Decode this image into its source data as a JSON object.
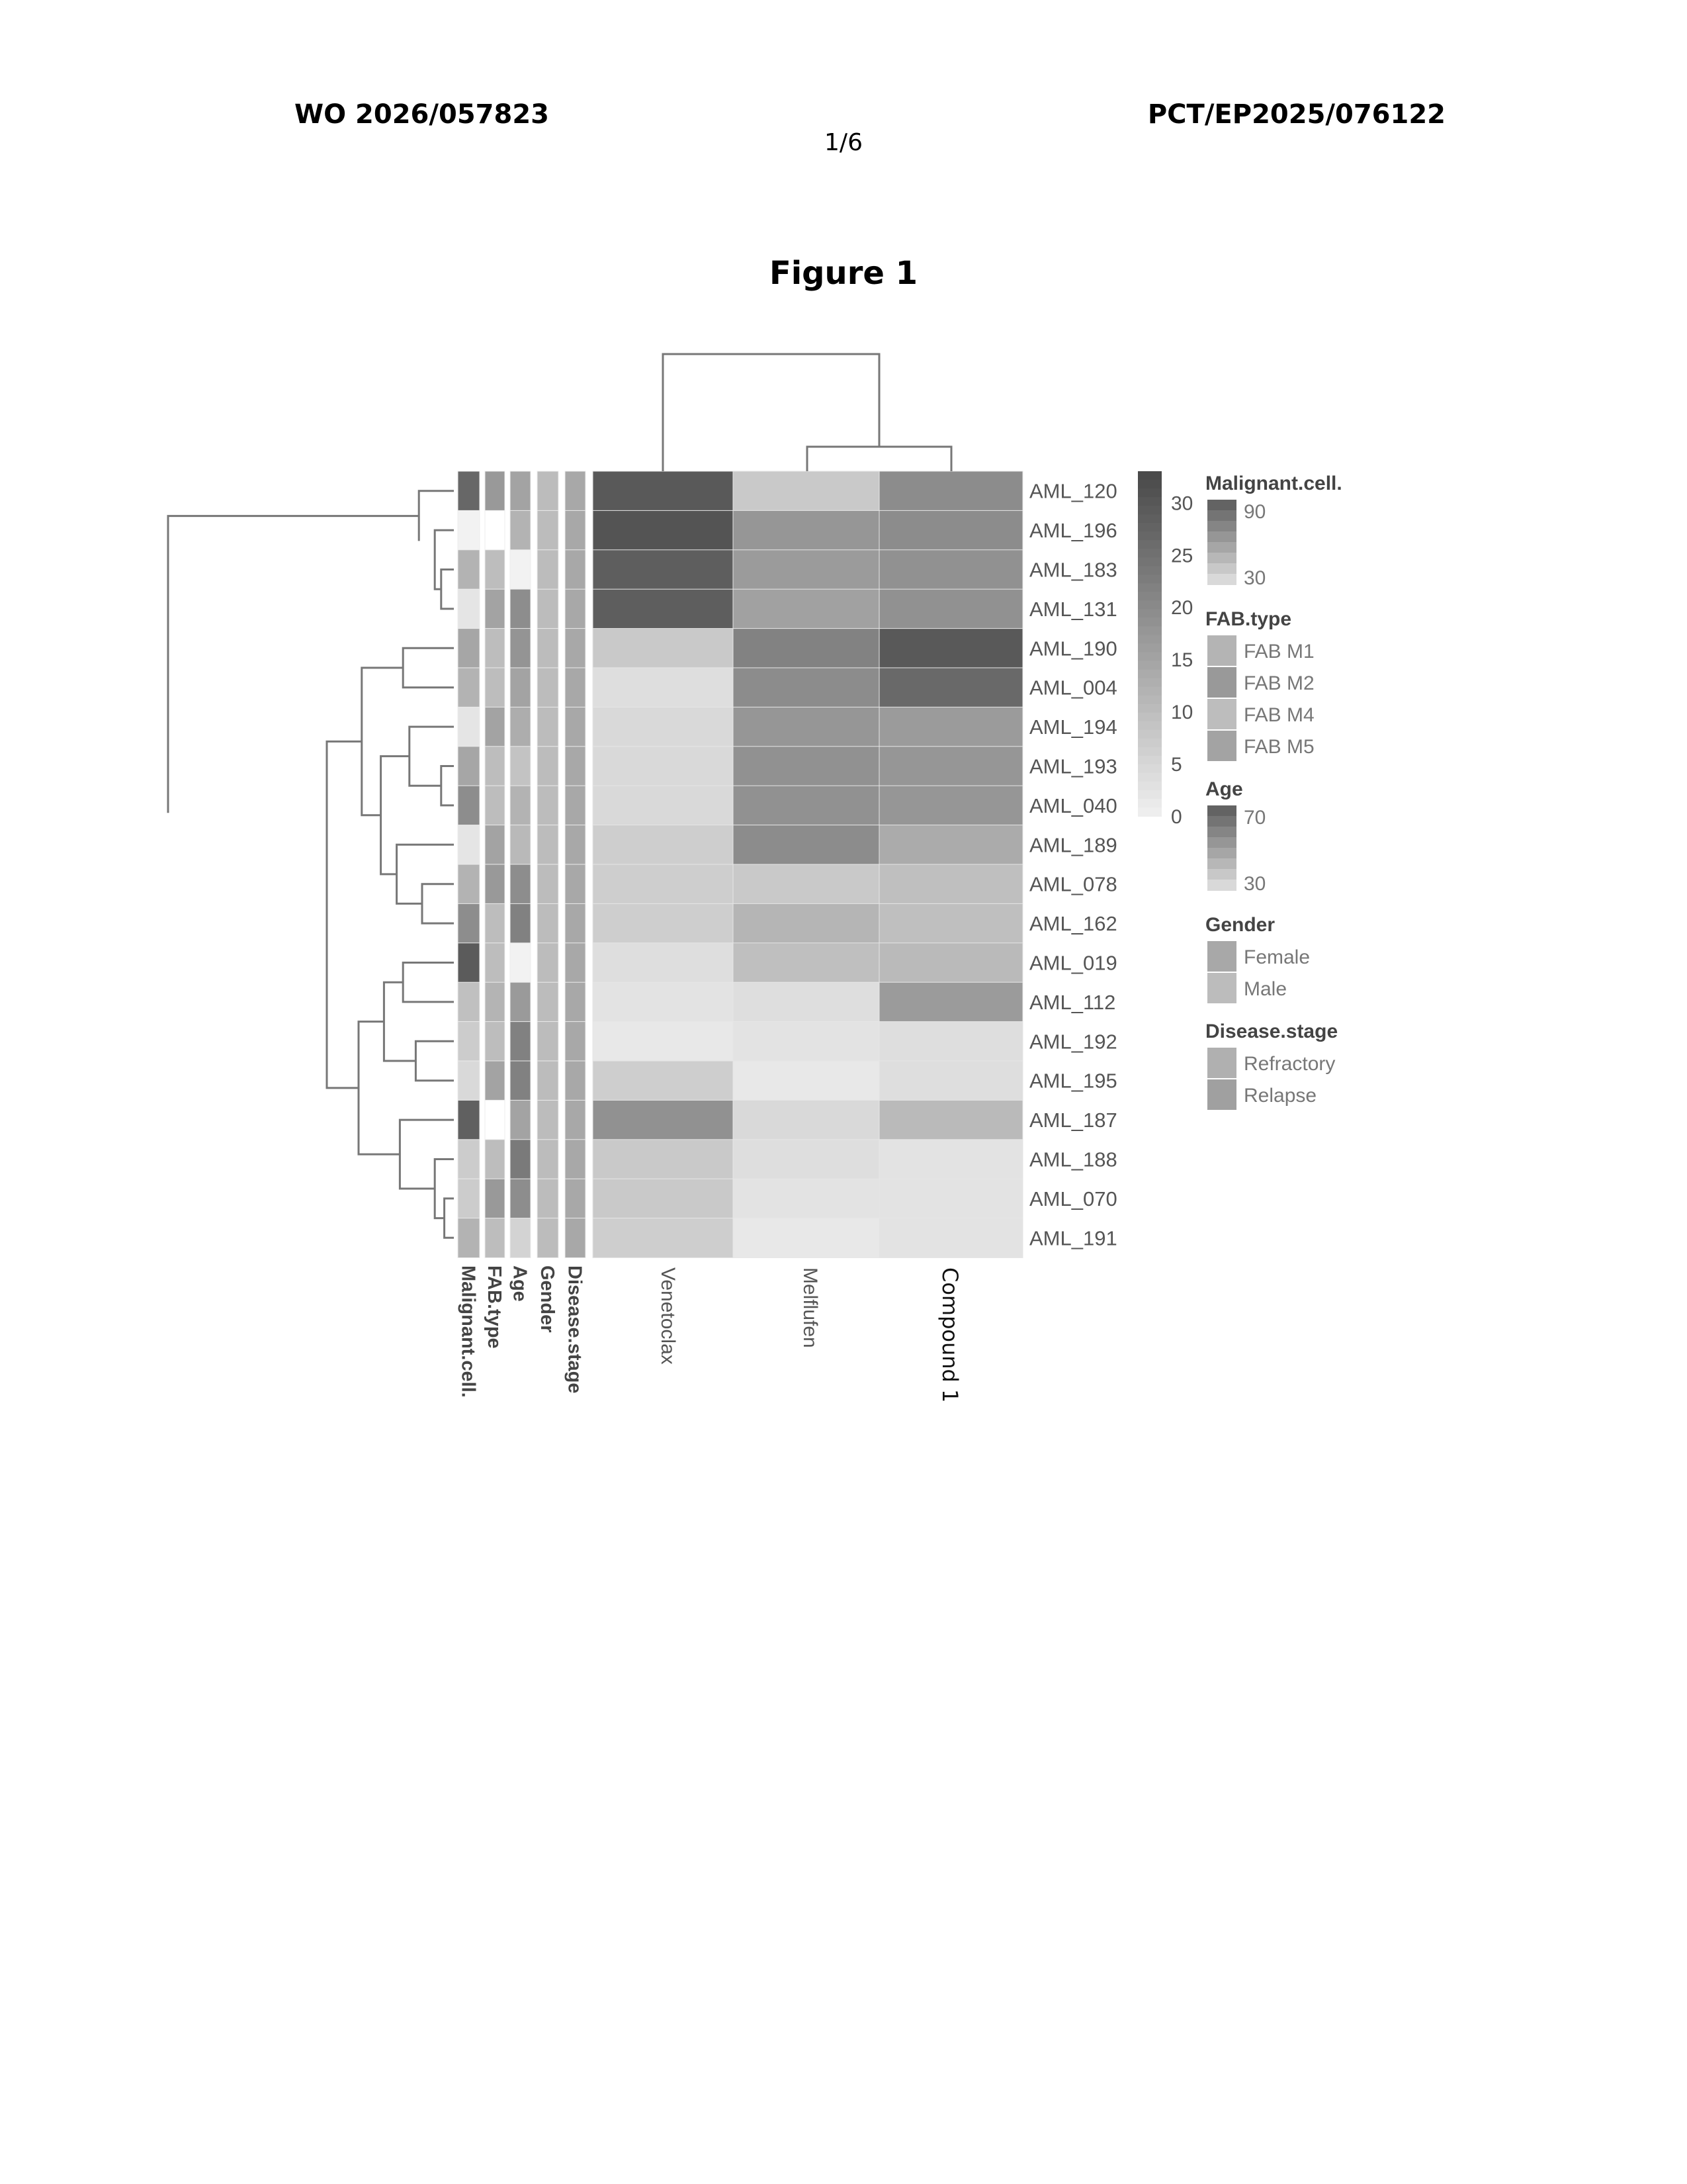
{
  "header": {
    "left": "WO 2026/057823",
    "right": "PCT/EP2025/076122",
    "page": "1/6"
  },
  "figure_title": "Figure 1",
  "chart_data": {
    "type": "heatmap",
    "columns": [
      "Venetoclax",
      "Melflufen",
      "Compound 1"
    ],
    "rows": [
      "AML_120",
      "AML_196",
      "AML_183",
      "AML_131",
      "AML_190",
      "AML_004",
      "AML_194",
      "AML_193",
      "AML_040",
      "AML_189",
      "AML_078",
      "AML_162",
      "AML_019",
      "AML_112",
      "AML_192",
      "AML_195",
      "AML_187",
      "AML_188",
      "AML_070",
      "AML_191"
    ],
    "values": [
      [
        30,
        8,
        20
      ],
      [
        31,
        18,
        20
      ],
      [
        29,
        17,
        19
      ],
      [
        29,
        16,
        19
      ],
      [
        8,
        22,
        30
      ],
      [
        4,
        20,
        27
      ],
      [
        5,
        18,
        17
      ],
      [
        5,
        19,
        18
      ],
      [
        5,
        19,
        18
      ],
      [
        7,
        20,
        14
      ],
      [
        7,
        8,
        10
      ],
      [
        7,
        12,
        10
      ],
      [
        4,
        10,
        11
      ],
      [
        3,
        4,
        17
      ],
      [
        2,
        3,
        4
      ],
      [
        7,
        2,
        4
      ],
      [
        19,
        5,
        11
      ],
      [
        8,
        4,
        3
      ],
      [
        8,
        3,
        3
      ],
      [
        7,
        2,
        3
      ]
    ],
    "color_scale": {
      "min": 0,
      "max": 33,
      "ticks": [
        0,
        5,
        10,
        15,
        20,
        25,
        30
      ],
      "low_color": "#f2f2f2",
      "high_color": "#4a4a4a"
    },
    "row_dendrogram": true,
    "column_dendrogram": true,
    "annotation_tracks": [
      "Malignant.cell.",
      "FAB.type",
      "Age",
      "Gender",
      "Disease.stage"
    ],
    "annotations": {
      "Malignant.cell.": [
        85,
        30,
        55,
        35,
        60,
        55,
        35,
        60,
        70,
        35,
        55,
        70,
        90,
        50,
        45,
        40,
        88,
        45,
        45,
        55
      ],
      "FAB.type": [
        "FAB M2",
        "",
        "FAB M4",
        "FAB M5",
        "FAB M4",
        "FAB M4",
        "FAB M5",
        "FAB M4",
        "FAB M4",
        "FAB M5",
        "FAB M2",
        "FAB M4",
        "FAB M4",
        "FAB M1",
        "FAB M4",
        "FAB M5",
        "",
        "FAB M4",
        "FAB M2",
        "FAB M4"
      ],
      "Age": [
        55,
        50,
        30,
        62,
        60,
        55,
        52,
        45,
        50,
        48,
        62,
        66,
        30,
        58,
        66,
        66,
        55,
        68,
        62,
        40
      ],
      "Gender": [
        "Male",
        "Male",
        "Male",
        "Male",
        "Male",
        "Male",
        "Male",
        "Male",
        "Male",
        "Male",
        "Male",
        "Male",
        "Male",
        "Male",
        "Male",
        "Male",
        "Male",
        "Male",
        "Male",
        "Male"
      ],
      "Disease.stage": [
        "Relapse",
        "Relapse",
        "Relapse",
        "Relapse",
        "Relapse",
        "Relapse",
        "Relapse",
        "Relapse",
        "Relapse",
        "Relapse",
        "Relapse",
        "Relapse",
        "Relapse",
        "Relapse",
        "Relapse",
        "Relapse",
        "Relapse",
        "Relapse",
        "Relapse",
        "Relapse"
      ]
    },
    "legends": [
      {
        "title": "Malignant.cell.",
        "type": "continuous",
        "labels": [
          "90",
          "30"
        ]
      },
      {
        "title": "FAB.type",
        "type": "categorical",
        "items": [
          "FAB M1",
          "FAB M2",
          "FAB M4",
          "FAB M5"
        ],
        "colors": [
          "#b4b4b4",
          "#999999",
          "#bdbdbd",
          "#a3a3a3"
        ]
      },
      {
        "title": "Age",
        "type": "continuous",
        "labels": [
          "70",
          "30"
        ]
      },
      {
        "title": "Gender",
        "type": "categorical",
        "items": [
          "Female",
          "Male"
        ],
        "colors": [
          "#a8a8a8",
          "#bcbcbc"
        ]
      },
      {
        "title": "Disease.stage",
        "type": "categorical",
        "items": [
          "Refractory",
          "Relapse"
        ],
        "colors": [
          "#b0b0b0",
          "#a0a0a0"
        ]
      }
    ]
  }
}
